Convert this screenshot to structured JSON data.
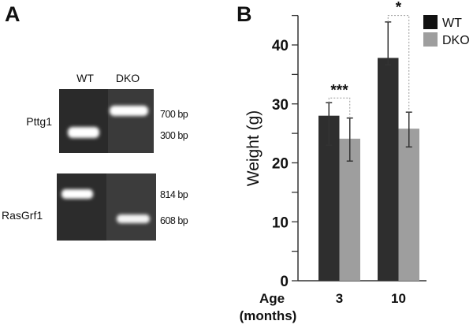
{
  "panel_a": {
    "label": "A",
    "lanes": [
      "WT",
      "DKO"
    ],
    "gels": [
      {
        "gene": "Pttg1",
        "sizes": [
          "700 bp",
          "300 bp"
        ]
      },
      {
        "gene": "RasGrf1",
        "sizes": [
          "814 bp",
          "608 bp"
        ]
      }
    ]
  },
  "panel_b": {
    "label": "B"
  },
  "chart_data": {
    "type": "bar",
    "title": "",
    "xlabel": "Age (months)",
    "xlabel_lines": [
      "Age",
      "(months)"
    ],
    "ylabel": "Weight (g)",
    "ylim": [
      0,
      45
    ],
    "yticks": [
      0,
      10,
      20,
      30,
      40
    ],
    "categories": [
      "3",
      "10"
    ],
    "series": [
      {
        "name": "WT",
        "color": "#2e2e2e",
        "values": [
          28,
          37.8
        ],
        "err_low": [
          23,
          36.6
        ],
        "err_high": [
          30.2,
          43.9
        ]
      },
      {
        "name": "DKO",
        "color": "#9e9e9e",
        "values": [
          24.1,
          25.8
        ],
        "err_low": [
          20.3,
          22.7
        ],
        "err_high": [
          27.6,
          28.6
        ]
      }
    ],
    "significance": [
      {
        "category": "3",
        "label": "***",
        "level": 31
      },
      {
        "category": "10",
        "label": "*",
        "level": 45
      }
    ],
    "legend_position": "top-right",
    "grid": false
  }
}
